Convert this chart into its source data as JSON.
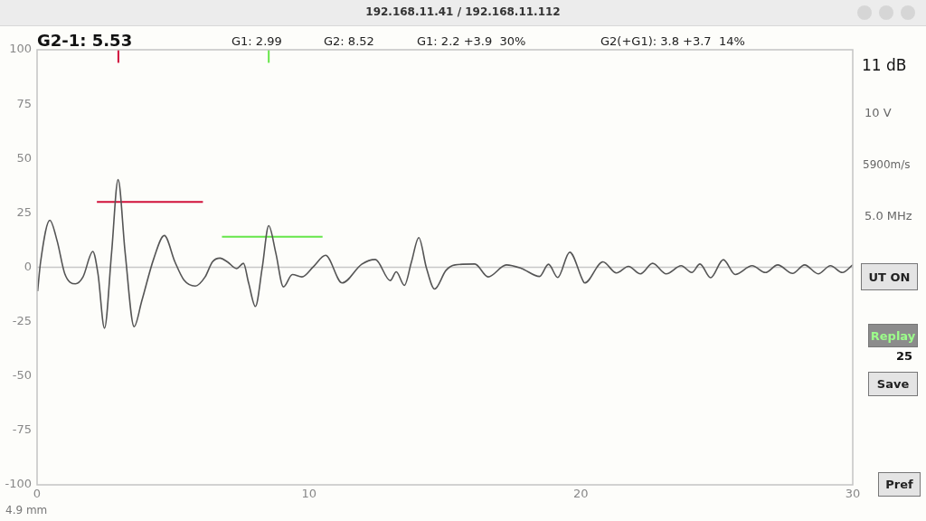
{
  "chart_data": {
    "type": "line",
    "title": "G2-1: 5.53",
    "annotations": [
      "192.168.11.41 / 192.168.11.112",
      "G1: 2.99",
      "G2: 8.52",
      "G1: 2.2 +3.9  30%",
      "G2(+G1): 3.8 +3.7  14%",
      "11 dB",
      "10 V",
      "5900m/s",
      "5.0 MHz",
      "UT ON",
      "Replay",
      "25",
      "Save",
      "Pref",
      "4.9 mm"
    ],
    "series": [
      {
        "color": "#555555",
        "x": [
          0.02,
          0.13,
          0.47,
          0.74,
          1.02,
          1.41,
          1.69,
          2.05,
          2.24,
          2.48,
          2.74,
          2.98,
          3.24,
          3.57,
          3.85,
          4.29,
          4.68,
          5.07,
          5.4,
          5.82,
          6.18,
          6.45,
          6.73,
          7.0,
          7.34,
          7.59,
          7.78,
          8.03,
          8.28,
          8.52,
          8.78,
          9.06,
          9.39,
          9.74,
          10.17,
          10.61,
          11.22,
          11.94,
          12.44,
          12.99,
          13.21,
          13.51,
          13.77,
          14.04,
          14.32,
          14.62,
          15.04,
          15.37,
          16.1,
          16.59,
          17.26,
          17.81,
          18.48,
          18.81,
          19.15,
          19.59,
          20.09,
          20.14,
          20.81,
          21.31,
          21.75,
          22.19,
          22.64,
          23.14,
          23.69,
          24.08,
          24.38,
          24.77,
          25.24,
          25.68,
          26.3,
          26.79,
          27.24,
          27.79,
          28.23,
          28.73,
          29.18,
          29.62,
          30
        ],
        "values": [
          -11,
          2.5,
          21.6,
          12,
          -3,
          -7.6,
          -4.4,
          7.3,
          -3,
          -28,
          6.6,
          40.3,
          6.6,
          -27.3,
          -15.5,
          3.9,
          14.6,
          2.5,
          -5.8,
          -8.6,
          -4.4,
          2.5,
          4.2,
          2.5,
          -0.6,
          1.8,
          -7.2,
          -18,
          -0.3,
          19.1,
          6.6,
          -9,
          -3.3,
          -4.4,
          0.4,
          5.5,
          -7.2,
          1.4,
          3.6,
          -6.1,
          -2.1,
          -8.3,
          2.5,
          13.6,
          -0.3,
          -10,
          -1.4,
          1.1,
          1.5,
          -4.4,
          1.1,
          -0.5,
          -4.2,
          1.4,
          -4.7,
          6.9,
          -6.5,
          -7.2,
          2.5,
          -2.6,
          0.4,
          -3,
          1.8,
          -3,
          0.7,
          -2.4,
          1.5,
          -4.8,
          3.5,
          -3.3,
          0.7,
          -2.4,
          1.1,
          -2.8,
          1.1,
          -3,
          0.7,
          -2.4,
          1.1
        ]
      },
      {
        "color": "#d0103a",
        "x": [
          2.2,
          6.1
        ],
        "values": [
          30,
          30
        ]
      },
      {
        "color": "#66e64a",
        "x": [
          6.8,
          10.5
        ],
        "values": [
          14,
          14
        ]
      },
      {
        "color": "#d0103a",
        "x": [
          2.99,
          2.99
        ],
        "values": [
          100,
          94
        ]
      },
      {
        "color": "#66e64a",
        "x": [
          8.52,
          8.52
        ],
        "values": [
          100,
          94
        ]
      }
    ],
    "xlim": [
      0,
      30
    ],
    "xticks": [
      0,
      10,
      20,
      30
    ],
    "ylim": [
      -100,
      100
    ],
    "yticks": [
      -100,
      -75,
      -50,
      -25,
      0,
      25,
      50,
      75,
      100
    ],
    "ref_lines": [
      {
        "axis": "y",
        "value": 0,
        "color": "#c8c8c8"
      }
    ],
    "grid": false,
    "legend": false,
    "marker": "none",
    "line_style": "solid"
  }
}
